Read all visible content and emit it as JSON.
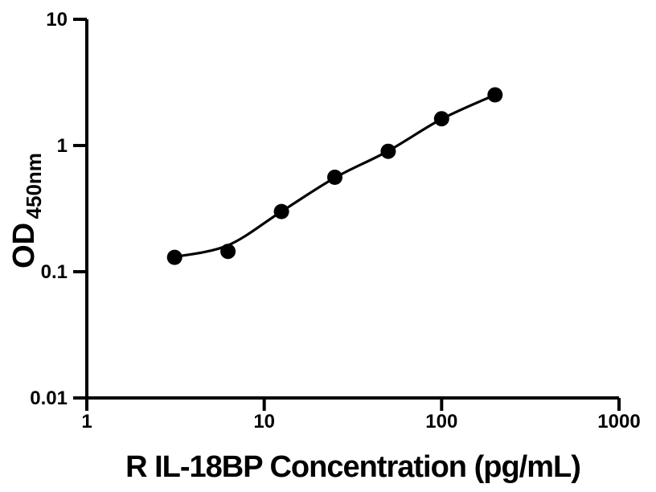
{
  "figure": {
    "background": "#ffffff"
  },
  "chart_data": {
    "type": "scatter",
    "title": "",
    "xlabel": "R IL-18BP Concentration (pg/mL)",
    "ylabel": "OD",
    "ylabel_subscript": "450nm",
    "x_scale": "log",
    "y_scale": "log",
    "xlim": [
      1,
      1000
    ],
    "ylim": [
      0.01,
      10
    ],
    "grid": false,
    "legend": false,
    "x_ticks": {
      "values": [
        1,
        10,
        100,
        1000
      ],
      "labels": [
        "1",
        "10",
        "100",
        "1000"
      ]
    },
    "y_ticks": {
      "values": [
        0.01,
        0.1,
        1,
        10
      ],
      "labels": [
        "0.01",
        "0.1",
        "1",
        "10"
      ]
    },
    "points": [
      {
        "x": 3.125,
        "y": 0.13
      },
      {
        "x": 6.25,
        "y": 0.145
      },
      {
        "x": 12.5,
        "y": 0.3
      },
      {
        "x": 25,
        "y": 0.56
      },
      {
        "x": 50,
        "y": 0.9
      },
      {
        "x": 100,
        "y": 1.63
      },
      {
        "x": 200,
        "y": 2.52
      }
    ],
    "fit_curve": [
      {
        "x": 3.125,
        "y": 0.131
      },
      {
        "x": 6.25,
        "y": 0.162
      },
      {
        "x": 12.5,
        "y": 0.3
      },
      {
        "x": 25,
        "y": 0.555
      },
      {
        "x": 50,
        "y": 0.905
      },
      {
        "x": 100,
        "y": 1.62
      },
      {
        "x": 200,
        "y": 2.52
      }
    ],
    "colors": {
      "marker": "#000000",
      "line": "#000000",
      "axis": "#000000",
      "text": "#000000"
    }
  }
}
